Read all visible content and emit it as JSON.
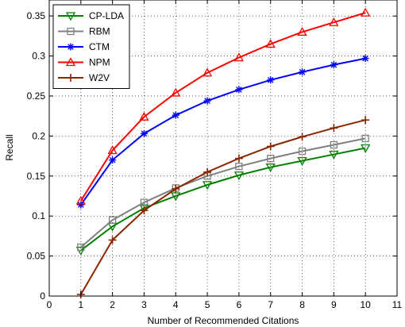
{
  "chart_data": {
    "type": "line",
    "title": "",
    "xlabel": "Number of Recommended Citations",
    "ylabel": "Recall",
    "xlim": [
      0,
      11
    ],
    "ylim": [
      0,
      0.37
    ],
    "xticks": [
      0,
      1,
      2,
      3,
      4,
      5,
      6,
      7,
      8,
      9,
      10,
      11
    ],
    "yticks": [
      0,
      0.05,
      0.1,
      0.15,
      0.2,
      0.25,
      0.3,
      0.35
    ],
    "ytick_labels": [
      "0",
      "0.05",
      "0.1",
      "0.15",
      "0.2",
      "0.25",
      "0.3",
      "0.35"
    ],
    "grid": true,
    "legend_position": "top-left",
    "x": [
      1,
      2,
      3,
      4,
      5,
      6,
      7,
      8,
      9,
      10
    ],
    "series": [
      {
        "name": "CP-LDA",
        "color": "#008000",
        "marker": "triangle-down",
        "values": [
          0.057,
          0.087,
          0.11,
          0.125,
          0.139,
          0.151,
          0.161,
          0.169,
          0.177,
          0.185
        ]
      },
      {
        "name": "RBM",
        "color": "#808080",
        "marker": "square",
        "values": [
          0.061,
          0.095,
          0.117,
          0.135,
          0.15,
          0.162,
          0.172,
          0.181,
          0.189,
          0.197
        ]
      },
      {
        "name": "CTM",
        "color": "#0000ff",
        "marker": "star",
        "values": [
          0.114,
          0.17,
          0.203,
          0.226,
          0.244,
          0.258,
          0.27,
          0.28,
          0.289,
          0.297
        ]
      },
      {
        "name": "NPM",
        "color": "#ff0000",
        "marker": "triangle-up",
        "values": [
          0.119,
          0.182,
          0.224,
          0.254,
          0.279,
          0.298,
          0.315,
          0.33,
          0.342,
          0.354
        ]
      },
      {
        "name": "W2V",
        "color": "#8b2500",
        "marker": "plus",
        "values": [
          0.002,
          0.07,
          0.107,
          0.134,
          0.155,
          0.172,
          0.187,
          0.199,
          0.21,
          0.22
        ]
      }
    ]
  }
}
